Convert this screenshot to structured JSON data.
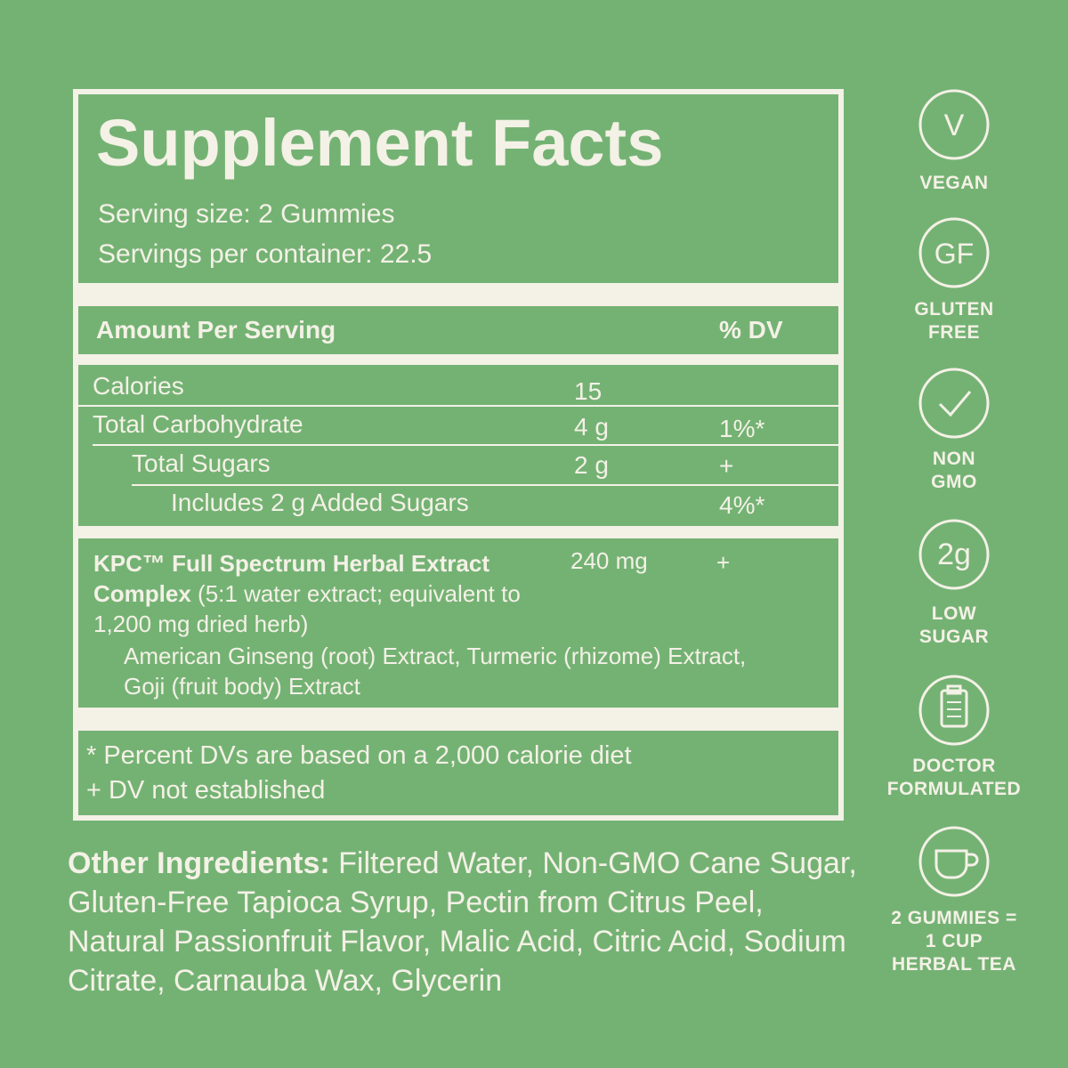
{
  "title": "Supplement Facts",
  "serving": [
    "Serving size: 2 Gummies",
    "Servings per container: 22.5"
  ],
  "header": {
    "amount": "Amount Per Serving",
    "dv": "% DV"
  },
  "nutrients": [
    {
      "name": "Calories",
      "amount": "15"
    },
    {
      "name": "Total Carbohydrate",
      "amount": "4 g",
      "dv": "1%*"
    },
    {
      "name": "Total Sugars",
      "amount": "2 g",
      "dv": "+"
    },
    {
      "name": "Includes 2 g Added Sugars",
      "dv": "4%*"
    }
  ],
  "extract": {
    "name": "KPC™ Full Spectrum Herbal Extract Complex",
    "note": "(5:1 water extract; equivalent to 1,200 mg dried herb)",
    "amount": "240 mg",
    "dv": "+",
    "sources": "American Ginseng (root) Extract, Turmeric (rhizome) Extract, Goji (fruit body) Extract"
  },
  "footnotes": [
    "* Percent DVs are based on a 2,000 calorie diet",
    "+ DV not established"
  ],
  "other_ingredients": {
    "label": "Other Ingredients:",
    "text": "Filtered Water, Non-GMO Cane Sugar, Gluten-Free Tapioca Syrup, Pectin from Citrus Peel, Natural Passionfruit Flavor, Malic Acid, Citric Acid, Sodium Citrate, Carnauba Wax, Glycerin"
  },
  "badges": [
    {
      "icon": "V",
      "label": [
        "VEGAN"
      ]
    },
    {
      "icon": "GF",
      "label": [
        "GLUTEN",
        "FREE"
      ]
    },
    {
      "label": [
        "NON",
        "GMO"
      ]
    },
    {
      "icon": "2g",
      "label": [
        "LOW",
        "SUGAR"
      ]
    },
    {
      "label": [
        "DOCTOR",
        "FORMULATED"
      ]
    },
    {
      "label": [
        "2 GUMMIES =",
        "1 CUP",
        "HERBAL TEA"
      ]
    }
  ]
}
